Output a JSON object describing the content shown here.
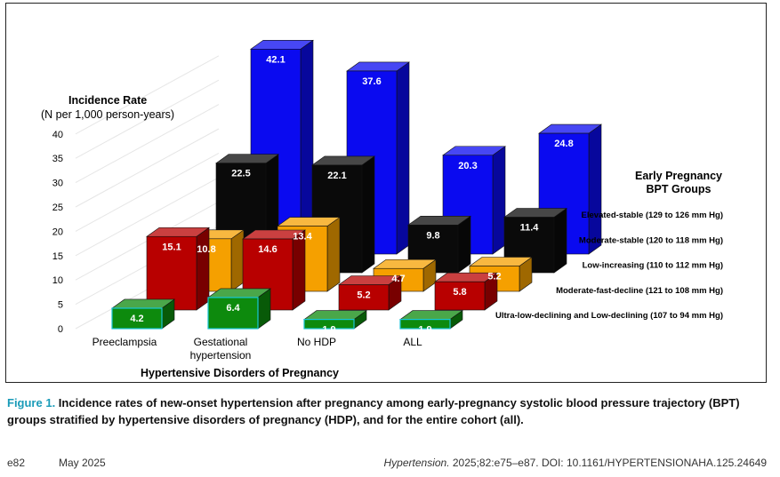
{
  "chart_data": {
    "type": "bar",
    "yaxis_title": "Incidence Rate",
    "yaxis_subtitle": "(N per 1,000 person-years)",
    "xaxis_title": "Hypertensive Disorders of Pregnancy",
    "legend_title_line1": "Early Pregnancy",
    "legend_title_line2": "BPT Groups",
    "ylim": [
      0,
      40
    ],
    "yticks": [
      "0",
      "5",
      "10",
      "15",
      "20",
      "25",
      "30",
      "35",
      "40"
    ],
    "categories": [
      {
        "line1": "Preeclampsia",
        "line2": ""
      },
      {
        "line1": "Gestational",
        "line2": "hypertension"
      },
      {
        "line1": "No HDP",
        "line2": ""
      },
      {
        "line1": "ALL",
        "line2": ""
      }
    ],
    "series": [
      {
        "name": "Ultra-low-declining and Low-declining (107 to 94 mm Hg)",
        "color": "#0d8a0d",
        "values": [
          4.2,
          6.4,
          1.9,
          1.9
        ],
        "labels": [
          "4.2",
          "6.4",
          "1.9",
          "1.9"
        ]
      },
      {
        "name": "Moderate-fast-decline (121 to 108 mm Hg)",
        "color": "#b80000",
        "values": [
          15.1,
          14.6,
          5.2,
          5.8
        ],
        "labels": [
          "15.1",
          "14.6",
          "5.2",
          "5.8"
        ]
      },
      {
        "name": "Low-increasing (110 to 112 mm Hg)",
        "color": "#f5a000",
        "values": [
          10.8,
          13.4,
          4.7,
          5.2
        ],
        "labels": [
          "10.8",
          "13.4",
          "4.7",
          "5.2"
        ]
      },
      {
        "name": "Moderate-stable (120 to 118 mm Hg)",
        "color": "#0a0a0a",
        "values": [
          22.5,
          22.1,
          9.8,
          11.4
        ],
        "labels": [
          "22.5",
          "22.1",
          "9.8",
          "11.4"
        ]
      },
      {
        "name": "Elevated-stable (129 to 126 mm Hg)",
        "color": "#0a0af0",
        "values": [
          42.1,
          37.6,
          20.3,
          24.8
        ],
        "labels": [
          "42.1",
          "37.6",
          "20.3",
          "24.8"
        ]
      }
    ]
  },
  "caption": {
    "label": "Figure 1.",
    "text": " Incidence rates of new-onset hypertension after pregnancy among early-pregnancy systolic blood pressure trajectory (BPT) groups stratified by hypertensive disorders of pregnancy (HDP), and for the entire cohort (all)."
  },
  "footer": {
    "page": "e82",
    "date": "May 2025",
    "journal": "Hypertension.",
    "citation": " 2025;82:e75–e87. DOI: 10.1161/HYPERTENSIONAHA.125.24649"
  }
}
